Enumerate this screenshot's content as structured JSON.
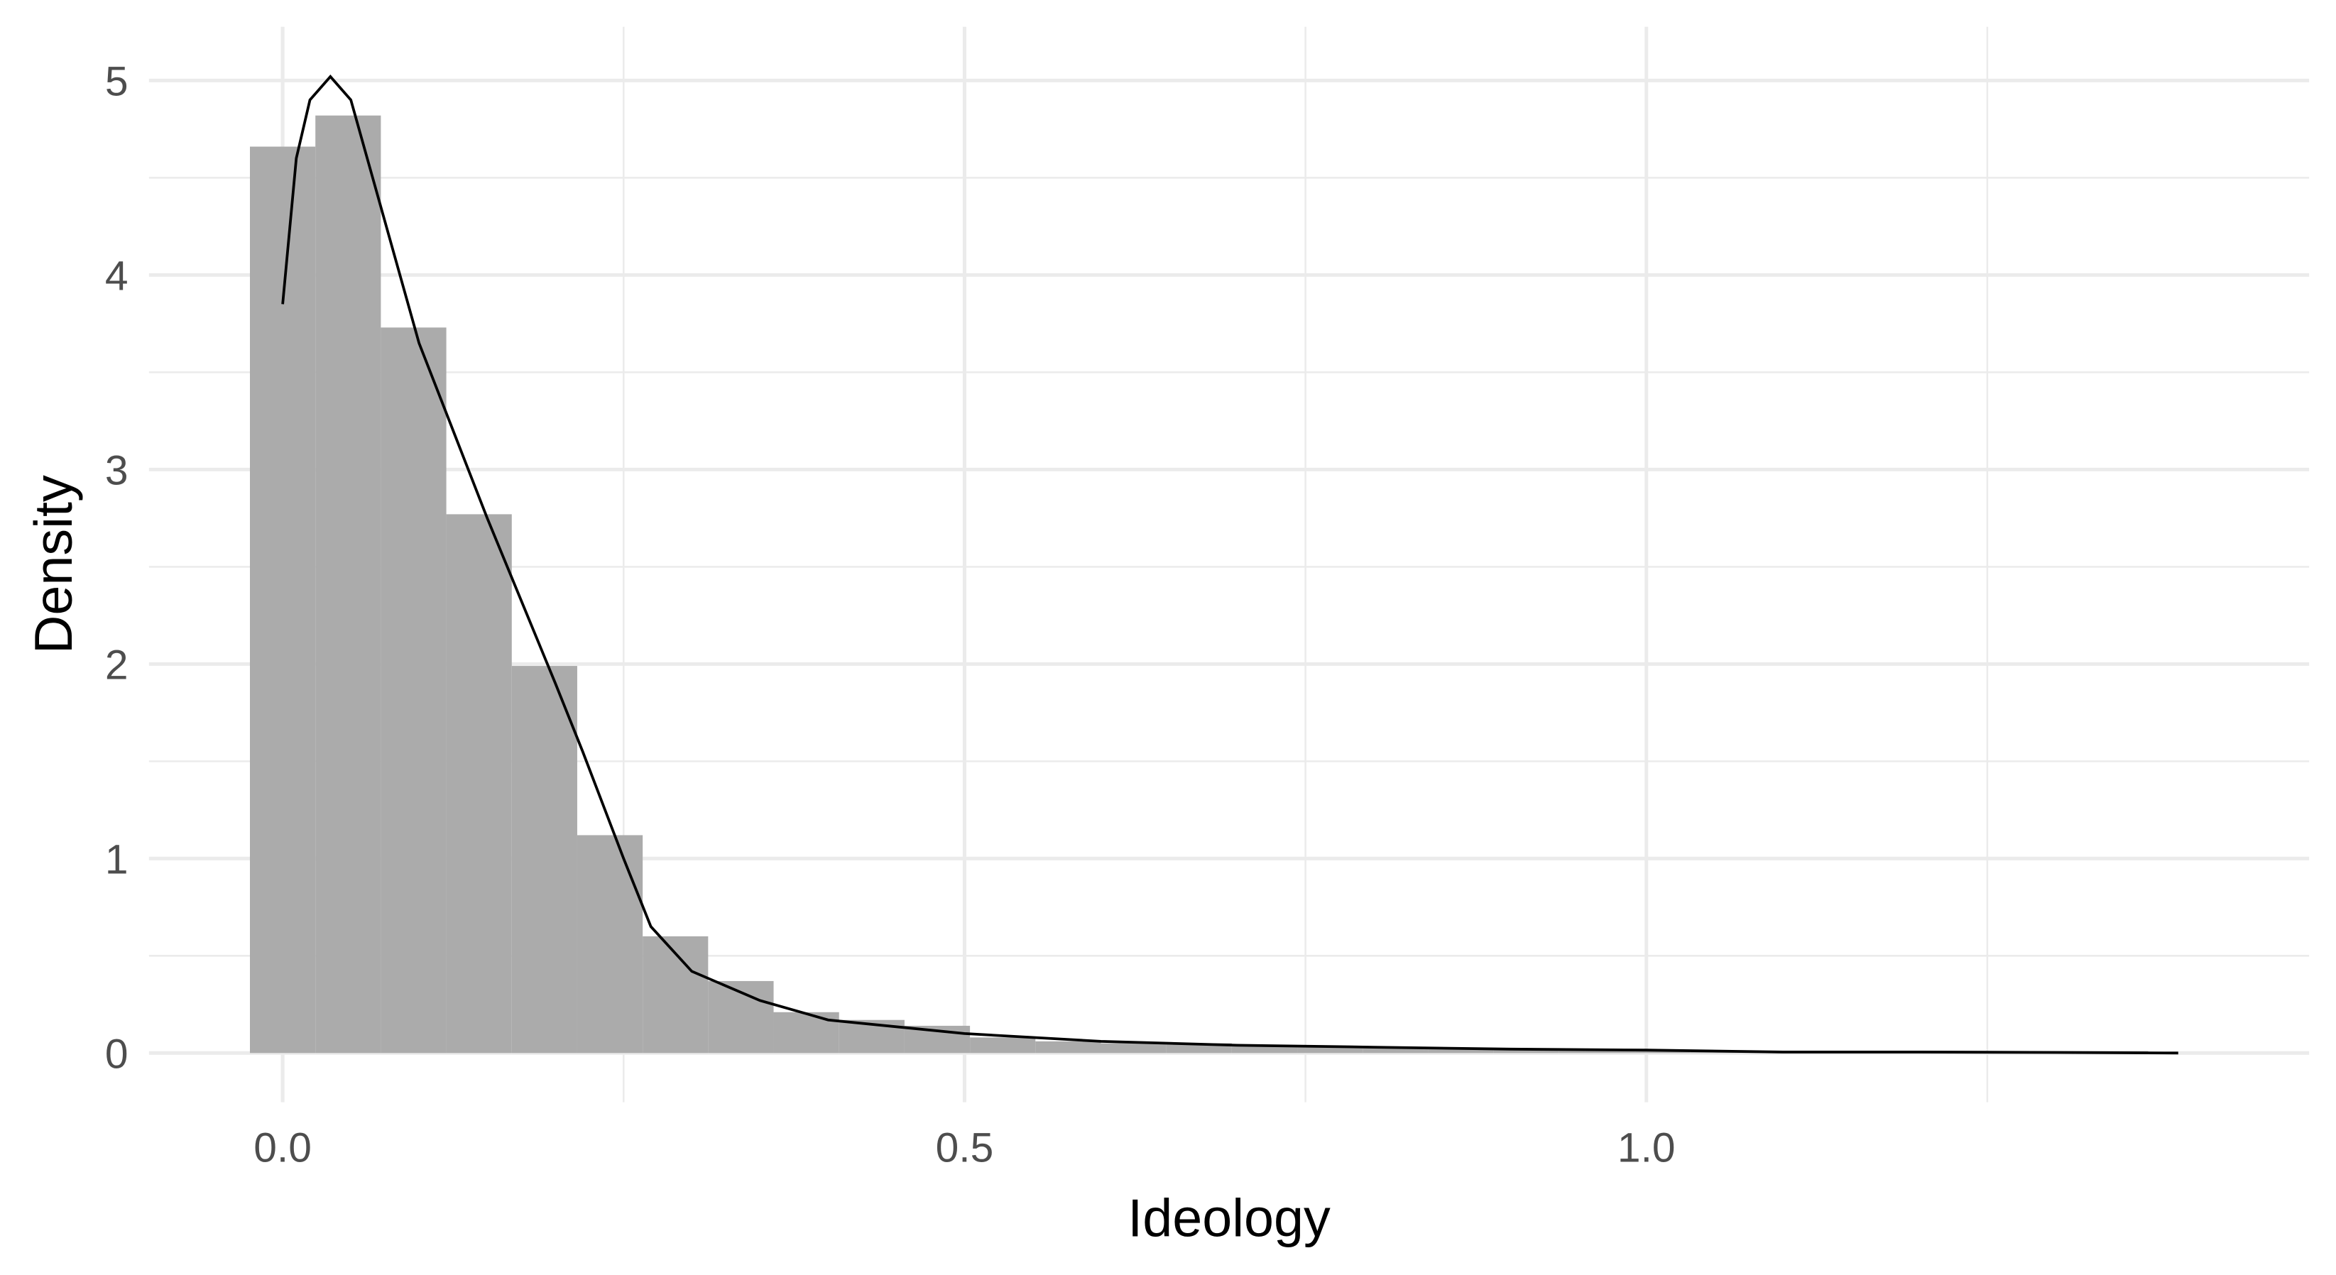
{
  "chart_data": {
    "type": "histogram",
    "x_label": "Ideology",
    "y_label": "Density",
    "bins": [
      -0.024,
      0.024,
      0.072,
      0.12,
      0.168,
      0.216,
      0.264,
      0.312,
      0.36,
      0.408,
      0.456,
      0.504,
      0.552,
      0.6,
      0.648,
      0.696,
      0.744,
      0.792,
      0.84,
      0.888,
      0.936,
      0.984,
      1.032,
      1.08,
      1.128,
      1.176,
      1.224,
      1.272,
      1.32,
      1.368
    ],
    "values": [
      4.66,
      4.82,
      3.73,
      2.77,
      1.99,
      1.12,
      0.6,
      0.37,
      0.21,
      0.17,
      0.14,
      0.08,
      0.06,
      0.05,
      0.05,
      0.04,
      0.03,
      0.03,
      0.02,
      0.02,
      0.02,
      0.01,
      0.01,
      0.01,
      0.01,
      0.01,
      0.01,
      0.01,
      0.01
    ],
    "color": "#ababab",
    "density_curve": {
      "x": [
        0,
        0.01,
        0.02,
        0.035,
        0.05,
        0.07,
        0.1,
        0.15,
        0.2,
        0.22,
        0.25,
        0.27,
        0.3,
        0.35,
        0.4,
        0.5,
        0.6,
        0.7,
        0.8,
        0.9,
        1.0,
        1.1,
        1.2,
        1.3,
        1.39
      ],
      "values": [
        3.85,
        4.6,
        4.9,
        5.02,
        4.9,
        4.4,
        3.65,
        2.75,
        1.9,
        1.55,
        1.0,
        0.65,
        0.42,
        0.27,
        0.17,
        0.1,
        0.06,
        0.04,
        0.03,
        0.02,
        0.015,
        0.005,
        0.005,
        0.003,
        0
      ],
      "color": "#000000"
    },
    "xlim": [
      -0.098,
      1.486
    ],
    "ylim": [
      -0.253,
      5.276
    ],
    "xticks": [
      {
        "value": 0,
        "label": "0.0"
      },
      {
        "value": 0.5,
        "label": "0.5"
      },
      {
        "value": 1,
        "label": "1.0"
      }
    ],
    "yticks": [
      0,
      1,
      2,
      3,
      4,
      5
    ],
    "x_minor_ticks": [
      0.25,
      0.75,
      1.25
    ],
    "y_minor_ticks": [
      0.5,
      1.5,
      2.5,
      3.5,
      4.5
    ],
    "grid": true
  }
}
